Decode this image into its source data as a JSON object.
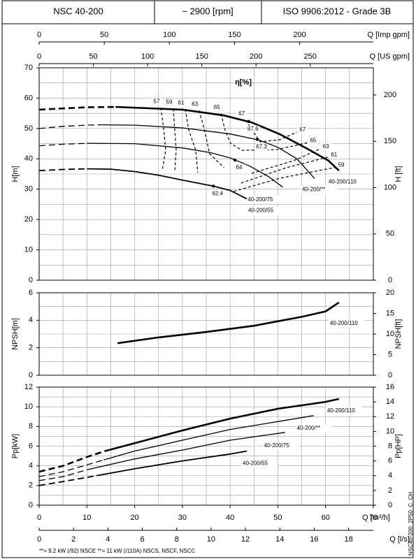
{
  "header": {
    "cells": [
      "NSC 40-200",
      "~ 2900 [rpm]",
      "ISO 9906:2012 - Grade 3B"
    ]
  },
  "q_axes": {
    "imp": {
      "label": "Q [Imp gpm]",
      "lim": [
        0,
        256.6
      ],
      "ticks": [
        0,
        50,
        100,
        150,
        200
      ]
    },
    "us": {
      "label": "Q [US gpm]",
      "lim": [
        0,
        308.2
      ],
      "ticks": [
        0,
        50,
        100,
        150,
        200,
        250
      ]
    },
    "ls": {
      "label": "Q [l/s]",
      "lim": [
        0,
        19.44
      ],
      "ticks": [
        0,
        2,
        4,
        6,
        8,
        10,
        12,
        14,
        16,
        18
      ]
    }
  },
  "footnote": "**= 9.2 kW (/92) NSCE   **= 11 kW (/110A) NSCS, NSCF, NSCC",
  "code": "NSC40-200_2P50_C_CH",
  "chart_data": [
    {
      "type": "line",
      "ylabel": "H[m]",
      "y2label": "H [ft]",
      "xlim": [
        0,
        70
      ],
      "xticks": [
        0,
        10,
        20,
        30,
        40,
        50,
        60,
        70
      ],
      "ylim": [
        0,
        70
      ],
      "yticks": [
        0,
        10,
        20,
        30,
        40,
        50,
        60,
        70
      ],
      "y2lim": [
        0,
        229.4
      ],
      "y2ticks": [
        0,
        50,
        100,
        150,
        200
      ],
      "xgrid": [
        0,
        5,
        10,
        15,
        20,
        25,
        30,
        35,
        40,
        45,
        50,
        55,
        60,
        65,
        70
      ],
      "ygrid": [
        0,
        5,
        10,
        15,
        20,
        25,
        30,
        35,
        40,
        45,
        50,
        55,
        60,
        65,
        70
      ],
      "efficiency_label": "η[%]",
      "series": [
        {
          "name": "40-200/110",
          "color": "#000000",
          "width": 2.6,
          "x_dashed": [
            0,
            5,
            10,
            16
          ],
          "values_dashed": [
            56.2,
            56.6,
            57,
            57.1
          ],
          "x": [
            16,
            30,
            38.7,
            44.5,
            50.4,
            56.2,
            60.6,
            62.8
          ],
          "values": [
            57.1,
            56.2,
            54.3,
            52,
            48.1,
            43.3,
            39.4,
            36.1
          ],
          "bep": {
            "q": 43.9,
            "h": 52.3,
            "eta": 67.6
          }
        },
        {
          "name": "40-200/**",
          "color": "#000000",
          "width": 1.3,
          "x_dashed": [
            0,
            5,
            10,
            13
          ],
          "values_dashed": [
            50,
            50.7,
            51.1,
            51.2
          ],
          "x": [
            13,
            20,
            30,
            40,
            46,
            50,
            54,
            57.7
          ],
          "values": [
            51.2,
            51.1,
            50.2,
            48.2,
            46.2,
            43.8,
            40,
            33.5
          ],
          "bep": {
            "q": 45.7,
            "h": 46.4,
            "eta": 67.3
          }
        },
        {
          "name": "40-200/75",
          "color": "#000000",
          "width": 1.3,
          "x_dashed": [
            0,
            5,
            10
          ],
          "values_dashed": [
            44.3,
            44.8,
            45.1
          ],
          "x": [
            10,
            20,
            30,
            36,
            40,
            44,
            48,
            51
          ],
          "values": [
            45.1,
            45,
            43.6,
            42,
            40.3,
            37.7,
            34.2,
            30.7
          ],
          "bep": {
            "q": 41,
            "h": 39.6,
            "eta": 64
          }
        },
        {
          "name": "40-200/55",
          "color": "#000000",
          "width": 1.8,
          "x_dashed": [
            0,
            5,
            10
          ],
          "values_dashed": [
            36.1,
            36.5,
            36.7
          ],
          "x": [
            10,
            15,
            20,
            25,
            30,
            36.5,
            40,
            43.5
          ],
          "values": [
            36.7,
            36.6,
            35.8,
            34.6,
            33,
            31,
            29.6,
            26.8
          ],
          "bep": {
            "q": 36.5,
            "h": 31,
            "eta": 62.4
          }
        }
      ],
      "efficiency": [
        {
          "eta": 57,
          "labels_at": [
            "start"
          ],
          "x": [
            25.5,
            26.1,
            26.5,
            25.8
          ],
          "values": [
            56.8,
            49.7,
            42.8,
            36.4
          ]
        },
        {
          "eta": 59,
          "labels_at": [
            "start",
            "end"
          ],
          "x": [
            28.1,
            28.4,
            28.7,
            28.4,
            null,
            40.8,
            50.4,
            62.1
          ],
          "values": [
            56.5,
            49.7,
            42.8,
            36,
            null,
            29.3,
            33.6,
            37.2
          ]
        },
        {
          "eta": 61,
          "labels_at": [
            "start",
            "end"
          ],
          "x": [
            30.6,
            31.3,
            32.8,
            33.2,
            null,
            42.3,
            51.8,
            60.6
          ],
          "values": [
            56.3,
            49.7,
            42.8,
            35.5,
            null,
            32,
            37.1,
            40.6
          ]
        },
        {
          "eta": 63,
          "labels_at": [
            "start",
            "end"
          ],
          "x": [
            33.5,
            34.6,
            35.7,
            38.7,
            null,
            44.5,
            53.3,
            58.9
          ],
          "values": [
            55.9,
            49.7,
            41.7,
            37.1,
            null,
            35.2,
            39.4,
            43.3
          ]
        },
        {
          "eta": 65,
          "labels_at": [
            "start",
            "end"
          ],
          "x": [
            38.1,
            38.9,
            40.1,
            42.5,
            49.6,
            56.2
          ],
          "values": [
            54.8,
            49.7,
            45.1,
            42.8,
            43,
            45.3
          ]
        },
        {
          "eta": 67,
          "labels_at": [
            "start",
            "end"
          ],
          "x": [
            43.3,
            44.5,
            46.3,
            50.4,
            54
          ],
          "values": [
            52.7,
            49.7,
            45.6,
            46.3,
            48.8
          ]
        }
      ]
    },
    {
      "type": "line",
      "ylabel": "NPSH[m]",
      "y2label": "NPSH[ft]",
      "xlim": [
        0,
        70
      ],
      "xticks": [
        0,
        10,
        20,
        30,
        40,
        50,
        60,
        70
      ],
      "ylim": [
        0,
        6
      ],
      "yticks": [
        0,
        2,
        4,
        6
      ],
      "y2lim": [
        0,
        20
      ],
      "y2ticks": [
        0,
        5,
        10,
        15,
        20
      ],
      "xgrid": [
        0,
        5,
        10,
        15,
        20,
        25,
        30,
        35,
        40,
        45,
        50,
        55,
        60,
        65,
        70
      ],
      "ygrid": [
        0,
        1,
        2,
        3,
        4,
        5,
        6
      ],
      "series": [
        {
          "name": "40-200/110",
          "color": "#000000",
          "width": 2.6,
          "x": [
            16.4,
            25,
            35,
            45,
            55,
            60,
            62.8
          ],
          "values": [
            2.33,
            2.75,
            3.15,
            3.6,
            4.25,
            4.65,
            5.3
          ]
        }
      ]
    },
    {
      "type": "line",
      "ylabel": "Pp[kW]",
      "y2label": "Pp[HP]",
      "xlabel": "Q [m³/h]",
      "xlim": [
        0,
        70
      ],
      "xticks": [
        0,
        10,
        20,
        30,
        40,
        50,
        60,
        70
      ],
      "ylim": [
        0,
        12
      ],
      "yticks": [
        0,
        2,
        4,
        6,
        8,
        10,
        12
      ],
      "y2lim": [
        0,
        16
      ],
      "y2ticks": [
        0,
        2,
        4,
        6,
        8,
        10,
        12,
        14,
        16
      ],
      "xgrid": [
        0,
        5,
        10,
        15,
        20,
        25,
        30,
        35,
        40,
        45,
        50,
        55,
        60,
        65,
        70
      ],
      "ygrid": [
        0,
        1,
        2,
        3,
        4,
        5,
        6,
        7,
        8,
        9,
        10,
        11,
        12
      ],
      "series": [
        {
          "name": "40-200/110",
          "color": "#000000",
          "width": 2.6,
          "x_dashed": [
            0,
            5,
            10,
            13.8
          ],
          "values_dashed": [
            3.4,
            4,
            4.9,
            5.5
          ],
          "x": [
            13.8,
            20,
            30,
            40,
            50,
            60,
            62.8
          ],
          "values": [
            5.5,
            6.3,
            7.6,
            8.8,
            9.8,
            10.5,
            10.8
          ]
        },
        {
          "name": "40-200/**",
          "color": "#000000",
          "width": 1.3,
          "x_dashed": [
            0,
            5,
            10,
            13.5
          ],
          "values_dashed": [
            2.9,
            3.4,
            4.1,
            4.6
          ],
          "x": [
            13.5,
            20,
            30,
            40,
            50,
            57.5
          ],
          "values": [
            4.6,
            5.5,
            6.6,
            7.7,
            8.5,
            9.1
          ]
        },
        {
          "name": "40-200/75",
          "color": "#000000",
          "width": 1.3,
          "x_dashed": [
            0,
            5,
            10
          ],
          "values_dashed": [
            2.5,
            2.9,
            3.6
          ],
          "x": [
            10,
            20,
            30,
            40,
            51.5
          ],
          "values": [
            3.6,
            4.7,
            5.6,
            6.6,
            7.4
          ]
        },
        {
          "name": "40-200/55",
          "color": "#000000",
          "width": 1.8,
          "x_dashed": [
            0,
            5,
            12
          ],
          "values_dashed": [
            2,
            2.4,
            3
          ],
          "x": [
            12,
            20,
            30,
            40,
            43.5
          ],
          "values": [
            3,
            3.7,
            4.5,
            5.2,
            5.5
          ]
        }
      ]
    }
  ]
}
